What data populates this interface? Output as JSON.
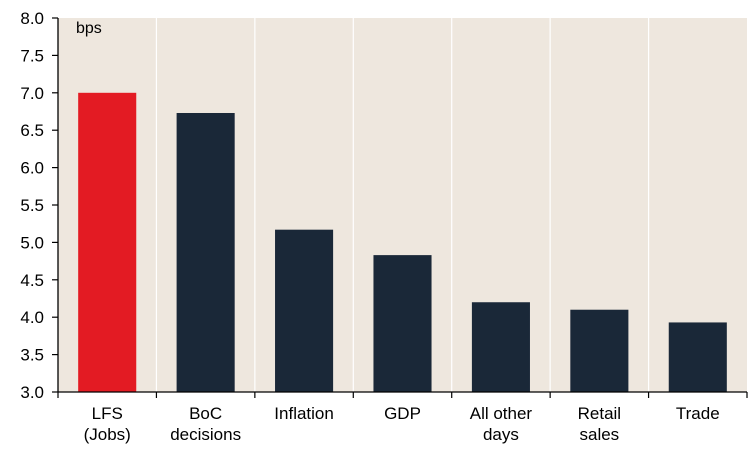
{
  "chart_data": {
    "type": "bar",
    "title": "",
    "xlabel": "",
    "ylabel": "",
    "unit_label": "bps",
    "categories": [
      [
        "LFS",
        "(Jobs)"
      ],
      [
        "BoC",
        "decisions"
      ],
      [
        "Inflation"
      ],
      [
        "GDP"
      ],
      [
        "All other",
        "days"
      ],
      [
        "Retail",
        "sales"
      ],
      [
        "Trade"
      ]
    ],
    "values": [
      7.0,
      6.73,
      5.17,
      4.83,
      4.2,
      4.1,
      3.93
    ],
    "bar_colors": [
      "#E31B23",
      "#1A2838",
      "#1A2838",
      "#1A2838",
      "#1A2838",
      "#1A2838",
      "#1A2838"
    ],
    "ylim": [
      3.0,
      8.0
    ],
    "yticks": [
      "3.0",
      "3.5",
      "4.0",
      "4.5",
      "5.0",
      "5.5",
      "6.0",
      "6.5",
      "7.0",
      "7.5",
      "8.0"
    ],
    "grid": "vertical",
    "plot_background": "#EEE7DE",
    "legend": "none"
  }
}
